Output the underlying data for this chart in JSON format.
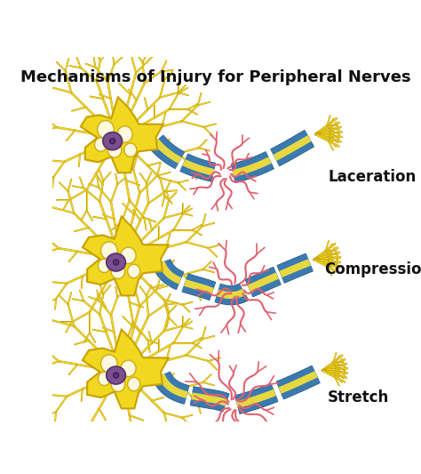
{
  "title": "Mechanisms of Injury for Peripheral Nerves",
  "title_fontsize": 13,
  "title_fontweight": "bold",
  "labels": [
    "Laceration",
    "Compression",
    "Stretch"
  ],
  "label_fontsize": 12,
  "label_fontweight": "bold",
  "background_color": "#ffffff",
  "neuron_body_color": "#f0d820",
  "neuron_body_edge": "#c8a000",
  "nucleus_color": "#7a5090",
  "nucleus_edge": "#5a3070",
  "axon_color": "#3a7ab0",
  "axon_stripe_color": "#e8d840",
  "injury_color": "#e06070",
  "dendrite_color": "#f0d820",
  "dendrite_edge": "#b89000",
  "fig_width": 4.74,
  "fig_height": 5.33,
  "dpi": 100
}
